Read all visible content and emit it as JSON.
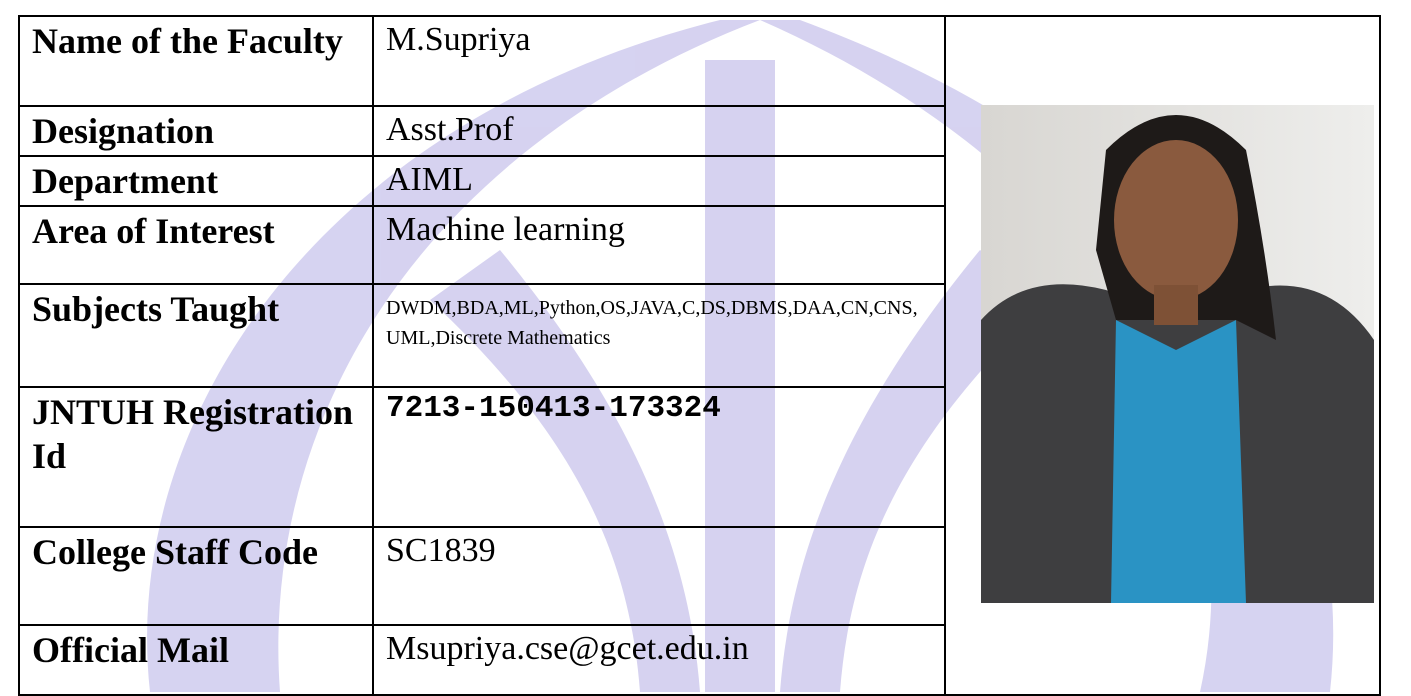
{
  "table": {
    "rows": [
      [
        "Name of the Faculty",
        "M.Supriya"
      ],
      [
        "Designation",
        "Asst.Prof"
      ],
      [
        "Department",
        "AIML"
      ],
      [
        "Area of Interest",
        "Machine learning"
      ],
      [
        "Subjects Taught",
        "DWDM,BDA,ML,Python,OS,JAVA,C,DS,DBMS,DAA,CN,CNS,UML,Discrete Mathematics"
      ],
      [
        "JNTUH Registration Id",
        "7213-150413-173324"
      ],
      [
        "College Staff Code",
        "SC1839"
      ],
      [
        "Official Mail",
        "Msupriya.cse@gcet.edu.in"
      ]
    ]
  }
}
